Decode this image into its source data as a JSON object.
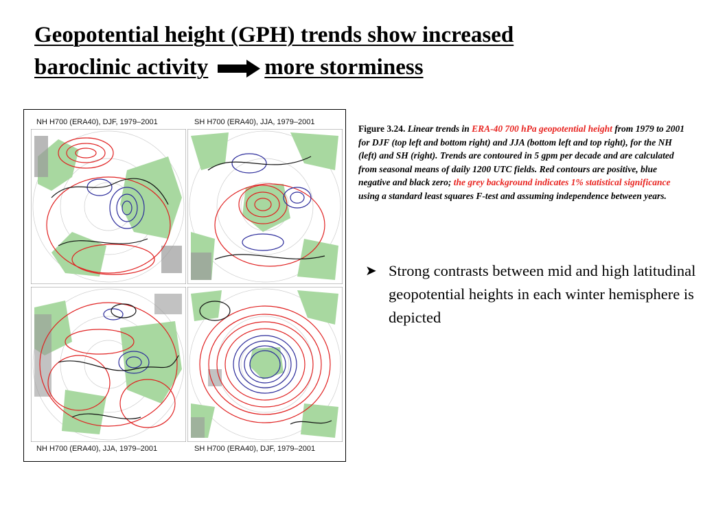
{
  "title": {
    "line1": "Geopotential height (GPH) trends show increased",
    "line2_before": "baroclinic activity",
    "line2_after": "more storminess",
    "arrow_icon": "right-arrow-icon"
  },
  "figure": {
    "panels": [
      {
        "label": "NH H700 (ERA40), DJF, 1979–2001",
        "position": "top-left"
      },
      {
        "label": "SH H700 (ERA40), JJA, 1979–2001",
        "position": "top-right"
      },
      {
        "label": "NH H700 (ERA40), JJA, 1979–2001",
        "position": "bottom-left"
      },
      {
        "label": "SH H700 (ERA40), DJF, 1979–2001",
        "position": "bottom-right"
      }
    ],
    "colors": {
      "positive": "#e02020",
      "negative": "#2a2a9a",
      "zero": "#111111",
      "land": "#a8d8a0",
      "significance": "#9a9a9a"
    }
  },
  "caption": {
    "fig_label": "Figure 3.24.",
    "part1": " Linear trends in ",
    "highlight1": "ERA-40 700 hPa geopotential height",
    "part2": " from 1979 to 2001 for DJF (top left and bottom right) and JJA (bottom left and top right), for the NH (left) and SH (right). Trends are contoured in 5 gpm per decade and are calculated from seasonal means of daily 1200 UTC fields. Red contours are positive, blue negative and black zero; ",
    "highlight2": "the grey background indicates 1% statistical significance",
    "part3": " using a standard least squares F-test and assuming independence between years."
  },
  "bullet": {
    "icon": "arrow-bullet-icon",
    "text": "Strong contrasts between mid and high latitudinal geopotential heights in each winter hemisphere is depicted"
  }
}
